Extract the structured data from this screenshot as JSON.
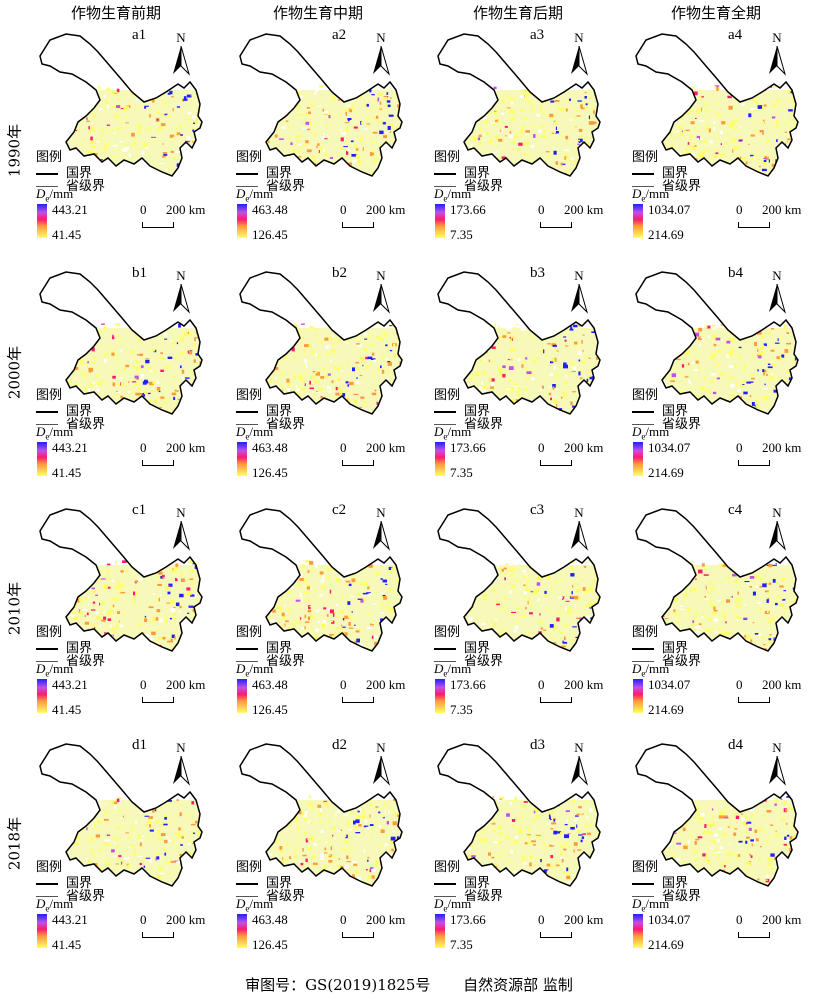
{
  "columns": [
    "作物生育前期",
    "作物生育中期",
    "作物生育后期",
    "作物生育全期"
  ],
  "rows": [
    "1990年",
    "2000年",
    "2010年",
    "2018年"
  ],
  "panel_ids": [
    [
      "a1",
      "a2",
      "a3",
      "a4"
    ],
    [
      "b1",
      "b2",
      "b3",
      "b4"
    ],
    [
      "c1",
      "c2",
      "c3",
      "c4"
    ],
    [
      "d1",
      "d2",
      "d3",
      "d4"
    ]
  ],
  "north_label": "N",
  "legend": {
    "title": "图例",
    "national_border": "国界",
    "provincial_border": "省级界",
    "unit_label": "Dₑ/mm"
  },
  "colorbar": [
    {
      "max": "443.21",
      "min": "41.45"
    },
    {
      "max": "463.48",
      "min": "126.45"
    },
    {
      "max": "173.66",
      "min": "7.35"
    },
    {
      "max": "1034.07",
      "min": "214.69"
    }
  ],
  "colors": {
    "high": "#2020ff",
    "mid_high": "#c050e8",
    "mid": "#ff1a70",
    "mid_low": "#ff9a3c",
    "low": "#ffff66"
  },
  "scale": {
    "zero": "0",
    "distance": "200 km"
  },
  "footer": {
    "approval": "审图号：GS(2019)1825号",
    "agency": "自然资源部 监制"
  }
}
